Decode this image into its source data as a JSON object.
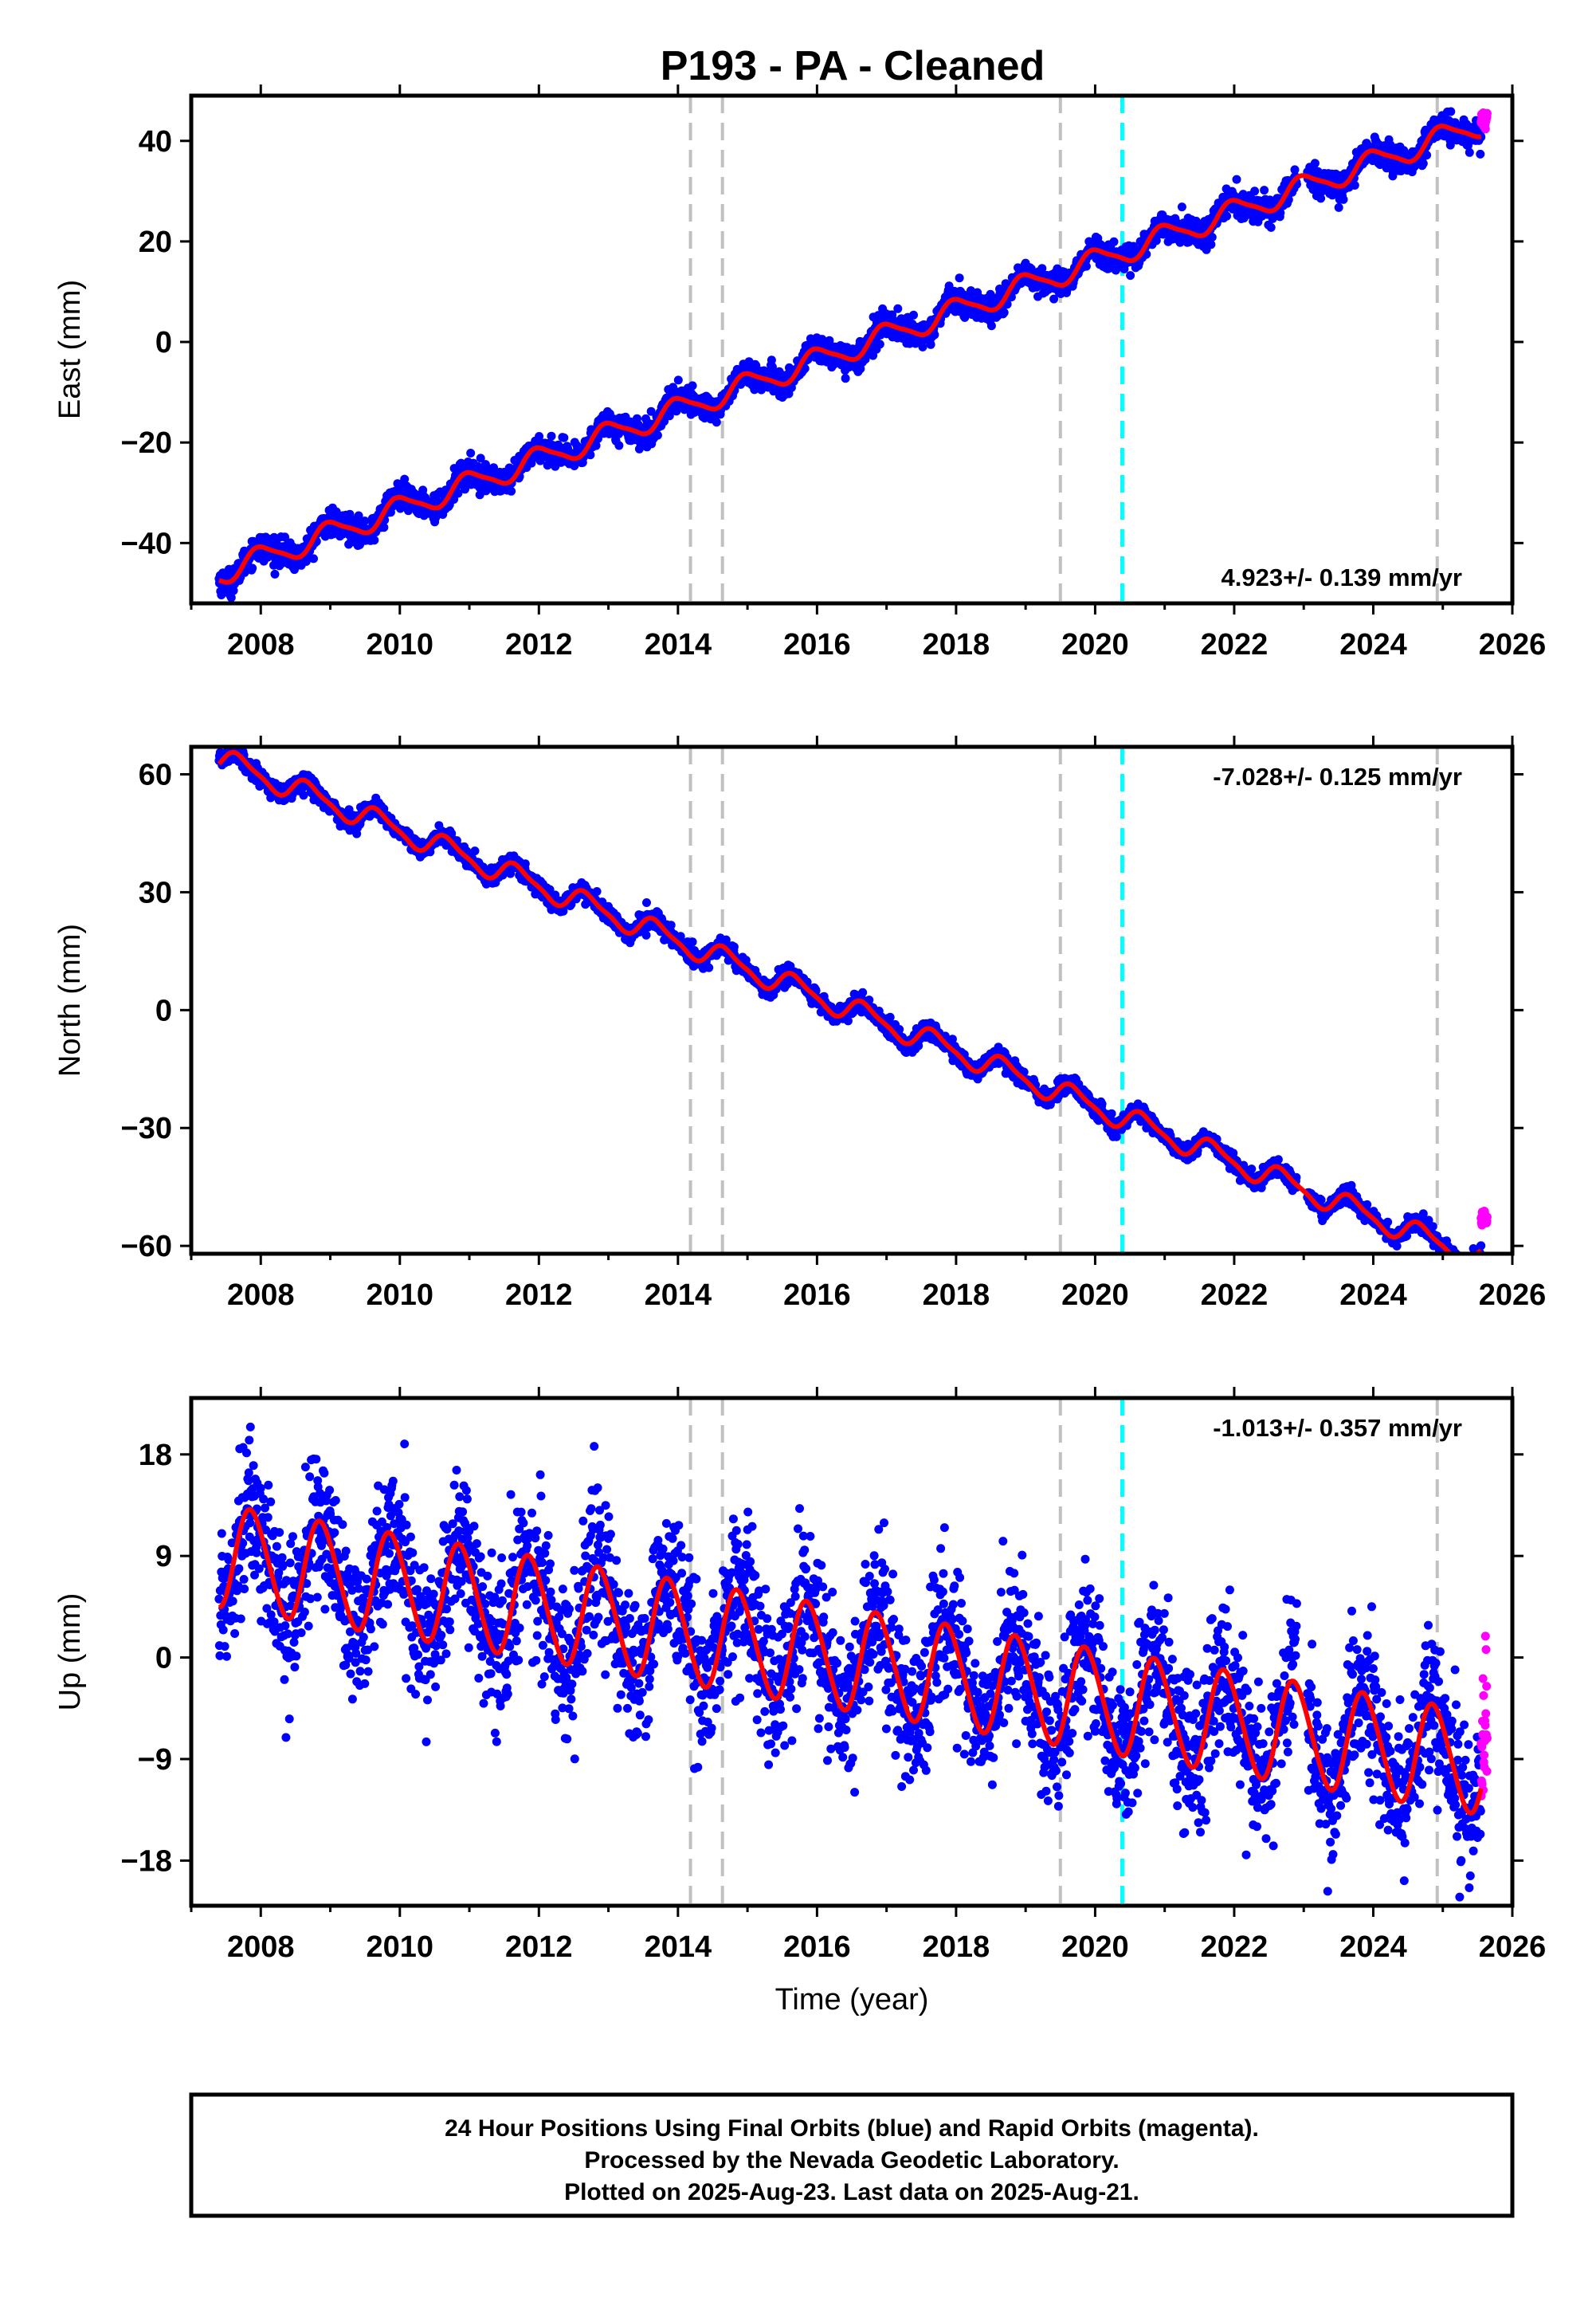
{
  "title": "P193  - PA - Cleaned",
  "footer": {
    "lines": [
      "24 Hour Positions Using Final Orbits (blue) and Rapid Orbits (magenta).",
      "Processed by the Nevada Geodetic Laboratory.",
      "Plotted on 2025-Aug-23. Last data on 2025-Aug-21."
    ]
  },
  "colors": {
    "final_orbits": "#0000ff",
    "rapid_orbits": "#ff00ff",
    "model_fit": "#ff0000",
    "equipment_change": "#c0c0c0",
    "earthquake": "#00ffff"
  },
  "chart_data": [
    {
      "type": "scatter",
      "component": "east",
      "ylabel": "East (mm)",
      "xlabel": "",
      "xlim": [
        2007.0,
        2026.0
      ],
      "ylim": [
        -52,
        49
      ],
      "xticks": [
        2008,
        2010,
        2012,
        2014,
        2016,
        2018,
        2020,
        2022,
        2024,
        2026
      ],
      "yticks": [
        -40,
        -20,
        0,
        20,
        40
      ],
      "rate_label": "4.923+/- 0.139 mm/yr",
      "rate_position": "bottom-right",
      "gray_event_lines": [
        2014.18,
        2014.64,
        2019.5,
        2024.92
      ],
      "cyan_event_lines": [
        2020.39
      ],
      "data_range": {
        "start": 2007.4,
        "final_end": 2025.55,
        "rapid_end": 2025.64
      },
      "model": {
        "rate": 4.923,
        "offset_at_2007_4": -46.0,
        "annual_amplitude": 2.3,
        "annual_phase_year": 0.75,
        "semiannual_amplitude": 0.5,
        "scatter": 1.3,
        "rapid_mean": 44.0
      },
      "fit_samples": {
        "x": [
          2007.4,
          2008.0,
          2009.0,
          2010.0,
          2011.0,
          2012.0,
          2013.0,
          2014.0,
          2015.0,
          2016.0,
          2017.0,
          2018.0,
          2019.0,
          2020.0,
          2021.0,
          2022.0,
          2023.0,
          2024.0,
          2025.0,
          2025.55
        ],
        "y": [
          -47,
          -41,
          -37,
          -31,
          -27,
          -22,
          -17,
          -11,
          -6,
          -2,
          4,
          8,
          13,
          18,
          23,
          28,
          33,
          37,
          42,
          43
        ]
      }
    },
    {
      "type": "scatter",
      "component": "north",
      "ylabel": "North (mm)",
      "xlabel": "",
      "xlim": [
        2007.0,
        2026.0
      ],
      "ylim": [
        -62,
        67
      ],
      "xticks": [
        2008,
        2010,
        2012,
        2014,
        2016,
        2018,
        2020,
        2022,
        2024,
        2026
      ],
      "yticks": [
        -60,
        -30,
        0,
        30,
        60
      ],
      "rate_label": "-7.028+/- 0.125 mm/yr",
      "rate_position": "top-right",
      "gray_event_lines": [
        2014.18,
        2014.64,
        2019.5,
        2024.92
      ],
      "cyan_event_lines": [
        2020.39
      ],
      "data_range": {
        "start": 2007.4,
        "final_end": 2025.55,
        "rapid_end": 2025.64
      },
      "model": {
        "rate": -7.028,
        "offset_at_2007_4": 64.0,
        "annual_amplitude": 2.8,
        "annual_phase_year": 0.45,
        "semiannual_amplitude": 0.8,
        "scatter": 1.1,
        "rapid_mean": -53.0
      },
      "fit_samples": {
        "x": [
          2007.4,
          2008.0,
          2009.0,
          2010.0,
          2011.0,
          2012.0,
          2013.0,
          2014.0,
          2015.0,
          2016.0,
          2017.0,
          2018.0,
          2019.0,
          2020.0,
          2021.0,
          2022.0,
          2023.0,
          2024.0,
          2025.0,
          2025.55
        ],
        "y": [
          64,
          56,
          50,
          41,
          35,
          28,
          21,
          13,
          7,
          0,
          -6,
          -13,
          -20,
          -28,
          -32,
          -37,
          -45,
          -51,
          -56,
          -55
        ]
      }
    },
    {
      "type": "scatter",
      "component": "up",
      "ylabel": "Up (mm)",
      "xlabel": "Time (year)",
      "xlim": [
        2007.0,
        2026.0
      ],
      "ylim": [
        -22,
        23
      ],
      "xticks": [
        2008,
        2010,
        2012,
        2014,
        2016,
        2018,
        2020,
        2022,
        2024,
        2026
      ],
      "yticks": [
        -18,
        -9,
        0,
        9,
        18
      ],
      "rate_label": "-1.013+/- 0.357 mm/yr",
      "rate_position": "top-right",
      "gray_event_lines": [
        2014.18,
        2014.64,
        2019.5,
        2024.92
      ],
      "cyan_event_lines": [
        2020.39
      ],
      "data_range": {
        "start": 2007.4,
        "final_end": 2025.55,
        "rapid_end": 2025.64
      },
      "model": {
        "rate": -1.013,
        "offset_at_2007_4": 9.0,
        "annual_amplitude": 4.5,
        "annual_phase_year": 0.62,
        "semiannual_amplitude": 0.4,
        "scatter": 3.3,
        "rapid_mean": -7.0
      },
      "fit_samples": {
        "x": [
          2007.4,
          2007.65,
          2008.15,
          2008.65,
          2009.15,
          2009.65,
          2010.15,
          2010.65,
          2011.15,
          2011.65,
          2012.15,
          2012.65,
          2013.15,
          2013.65,
          2014.15,
          2014.65,
          2015.15,
          2015.65,
          2016.15,
          2016.65,
          2017.15,
          2017.65,
          2018.15,
          2018.65,
          2019.15,
          2019.65,
          2020.15,
          2020.65,
          2021.15,
          2021.65,
          2022.15,
          2022.65,
          2023.15,
          2023.65,
          2024.15,
          2024.65,
          2025.15,
          2025.55
        ],
        "y": [
          8,
          13.5,
          5,
          12.5,
          4,
          11.5,
          3,
          10.5,
          2,
          9.5,
          1,
          8.5,
          0,
          7.5,
          -1,
          7,
          -2,
          4.5,
          -4,
          3.5,
          -5,
          2.5,
          -6,
          1.5,
          -7,
          -3,
          -11,
          -3,
          -11,
          -4,
          -12,
          -5,
          -13,
          -6,
          -14,
          -7,
          -16,
          -10
        ]
      }
    }
  ]
}
